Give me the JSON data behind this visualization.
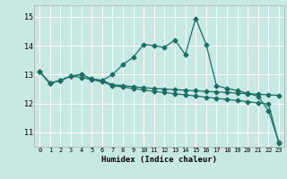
{
  "xlabel": "Humidex (Indice chaleur)",
  "xlim": [
    -0.5,
    23.5
  ],
  "ylim": [
    10.5,
    15.4
  ],
  "yticks": [
    11,
    12,
    13,
    14,
    15
  ],
  "xticks": [
    0,
    1,
    2,
    3,
    4,
    5,
    6,
    7,
    8,
    9,
    10,
    11,
    12,
    13,
    14,
    15,
    16,
    17,
    18,
    19,
    20,
    21,
    22,
    23
  ],
  "background_color": "#c8e8e4",
  "grid_color": "#ffffff",
  "line_color": "#1a6e64",
  "line1_x": [
    0,
    1,
    2,
    3,
    4,
    5,
    6,
    7,
    8,
    9,
    10,
    11,
    12,
    13,
    14,
    15,
    16,
    17,
    18,
    19,
    20,
    21,
    22,
    23
  ],
  "line1_y": [
    13.1,
    12.7,
    12.8,
    12.95,
    13.0,
    12.85,
    12.8,
    13.0,
    13.35,
    13.6,
    14.05,
    14.0,
    13.95,
    14.2,
    13.7,
    14.95,
    14.05,
    12.62,
    12.52,
    12.45,
    12.35,
    12.25,
    11.75,
    10.65
  ],
  "line2_x": [
    0,
    1,
    2,
    3,
    4,
    5,
    6,
    7,
    8,
    9,
    10,
    11,
    12,
    13,
    14,
    15,
    16,
    17,
    18,
    19,
    20,
    21,
    22,
    23
  ],
  "line2_y": [
    13.1,
    12.7,
    12.8,
    12.95,
    13.0,
    12.85,
    12.8,
    12.65,
    12.62,
    12.58,
    12.55,
    12.52,
    12.5,
    12.48,
    12.46,
    12.44,
    12.42,
    12.4,
    12.38,
    12.36,
    12.34,
    12.32,
    12.3,
    12.28
  ],
  "line3_x": [
    0,
    1,
    2,
    3,
    4,
    5,
    6,
    7,
    8,
    9,
    10,
    11,
    12,
    13,
    14,
    15,
    16,
    17,
    18,
    19,
    20,
    21,
    22,
    23
  ],
  "line3_y": [
    13.1,
    12.7,
    12.8,
    12.95,
    12.9,
    12.83,
    12.75,
    12.62,
    12.57,
    12.52,
    12.47,
    12.42,
    12.38,
    12.34,
    12.3,
    12.26,
    12.22,
    12.18,
    12.14,
    12.1,
    12.06,
    12.02,
    11.98,
    10.62
  ]
}
